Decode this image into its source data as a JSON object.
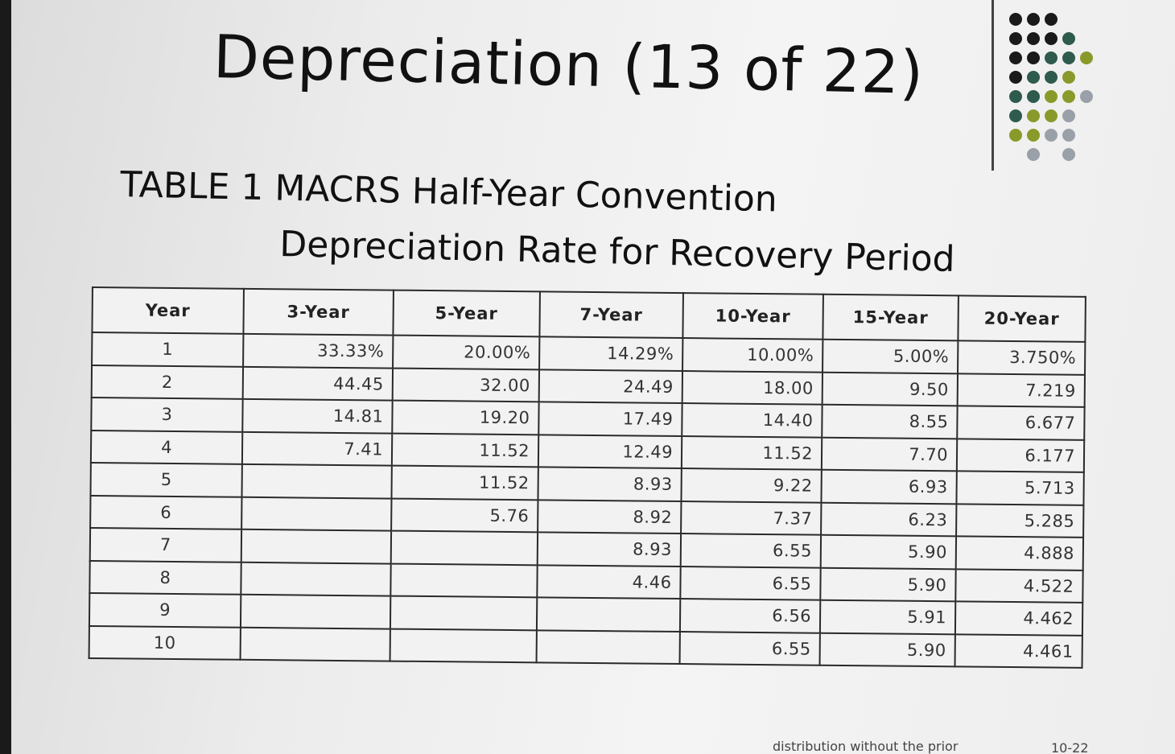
{
  "slide": {
    "title": "Depreciation (13 of 22)",
    "table_title_line1": "TABLE 1 MACRS Half-Year Convention",
    "table_title_line2": "Depreciation Rate for Recovery Period",
    "footer_text": "distribution without the prior",
    "page_number": "10-22"
  },
  "table": {
    "headers": [
      "Year",
      "3-Year",
      "5-Year",
      "7-Year",
      "10-Year",
      "15-Year",
      "20-Year"
    ],
    "rows": [
      [
        "1",
        "33.33%",
        "20.00%",
        "14.29%",
        "10.00%",
        "5.00%",
        "3.750%"
      ],
      [
        "2",
        "44.45",
        "32.00",
        "24.49",
        "18.00",
        "9.50",
        "7.219"
      ],
      [
        "3",
        "14.81",
        "19.20",
        "17.49",
        "14.40",
        "8.55",
        "6.677"
      ],
      [
        "4",
        "7.41",
        "11.52",
        "12.49",
        "11.52",
        "7.70",
        "6.177"
      ],
      [
        "5",
        "",
        "11.52",
        "8.93",
        "9.22",
        "6.93",
        "5.713"
      ],
      [
        "6",
        "",
        "5.76",
        "8.92",
        "7.37",
        "6.23",
        "5.285"
      ],
      [
        "7",
        "",
        "",
        "8.93",
        "6.55",
        "5.90",
        "4.888"
      ],
      [
        "8",
        "",
        "",
        "4.46",
        "6.55",
        "5.90",
        "4.522"
      ],
      [
        "9",
        "",
        "",
        "",
        "6.56",
        "5.91",
        "4.462"
      ],
      [
        "10",
        "",
        "",
        "",
        "6.55",
        "5.90",
        "4.461"
      ]
    ]
  },
  "decoration": {
    "dot_colors": {
      "black": "#1a1a1a",
      "teal": "#2f5a4e",
      "olive": "#8a9a2a",
      "gray": "#9aa0a8"
    }
  }
}
